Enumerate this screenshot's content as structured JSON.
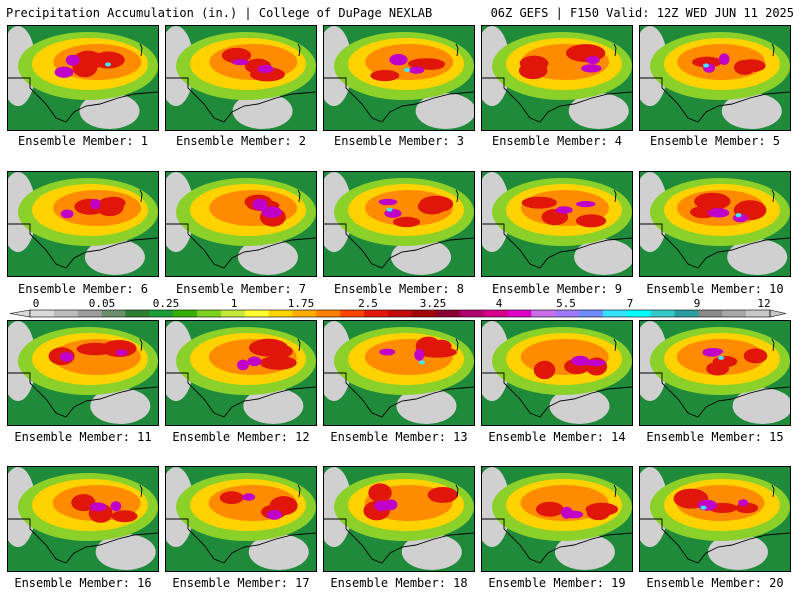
{
  "header": {
    "left_title": "Precipitation Accumulation (in.) | College of DuPage NEXLAB",
    "right_title": "06Z GEFS | F150 Valid: 12Z WED JUN 11 2025"
  },
  "member_label_prefix": "Ensemble Member: ",
  "members": [
    "1",
    "2",
    "3",
    "4",
    "5",
    "6",
    "7",
    "8",
    "9",
    "10",
    "11",
    "12",
    "13",
    "14",
    "15",
    "16",
    "17",
    "18",
    "19",
    "20"
  ],
  "colorbar": {
    "labels": [
      "0",
      "0.05",
      "0.25",
      "1",
      "1.75",
      "2.5",
      "3.25",
      "4",
      "5.5",
      "7",
      "9",
      "12"
    ],
    "colors": [
      "#d9d9d9",
      "#bdbdbd",
      "#9e9e9e",
      "#6b8e6b",
      "#2e7d32",
      "#1b9e3a",
      "#38b000",
      "#7ed321",
      "#c6e83a",
      "#ffff33",
      "#ffd400",
      "#ffaa00",
      "#ff7f00",
      "#ff4500",
      "#e3170a",
      "#c40c0c",
      "#a0060a",
      "#8a0033",
      "#b0006e",
      "#d4008a",
      "#e000c8",
      "#c86ee8",
      "#9f7aff",
      "#6f8cff",
      "#33e0ff",
      "#00ffff",
      "#33c9c9",
      "#2a9d9d",
      "#8a8a8a",
      "#a8a8a8",
      "#c8c8c8"
    ]
  },
  "map_colors": {
    "dry": "#d0d0d0",
    "light": "#1f8a3a",
    "moderate": "#8bd12a",
    "heavy": "#ffd200",
    "very_heavy": "#ff8c00",
    "extreme": "#e0160a",
    "max": "#c000c8",
    "peak": "#40e8ff",
    "border": "#000000"
  }
}
